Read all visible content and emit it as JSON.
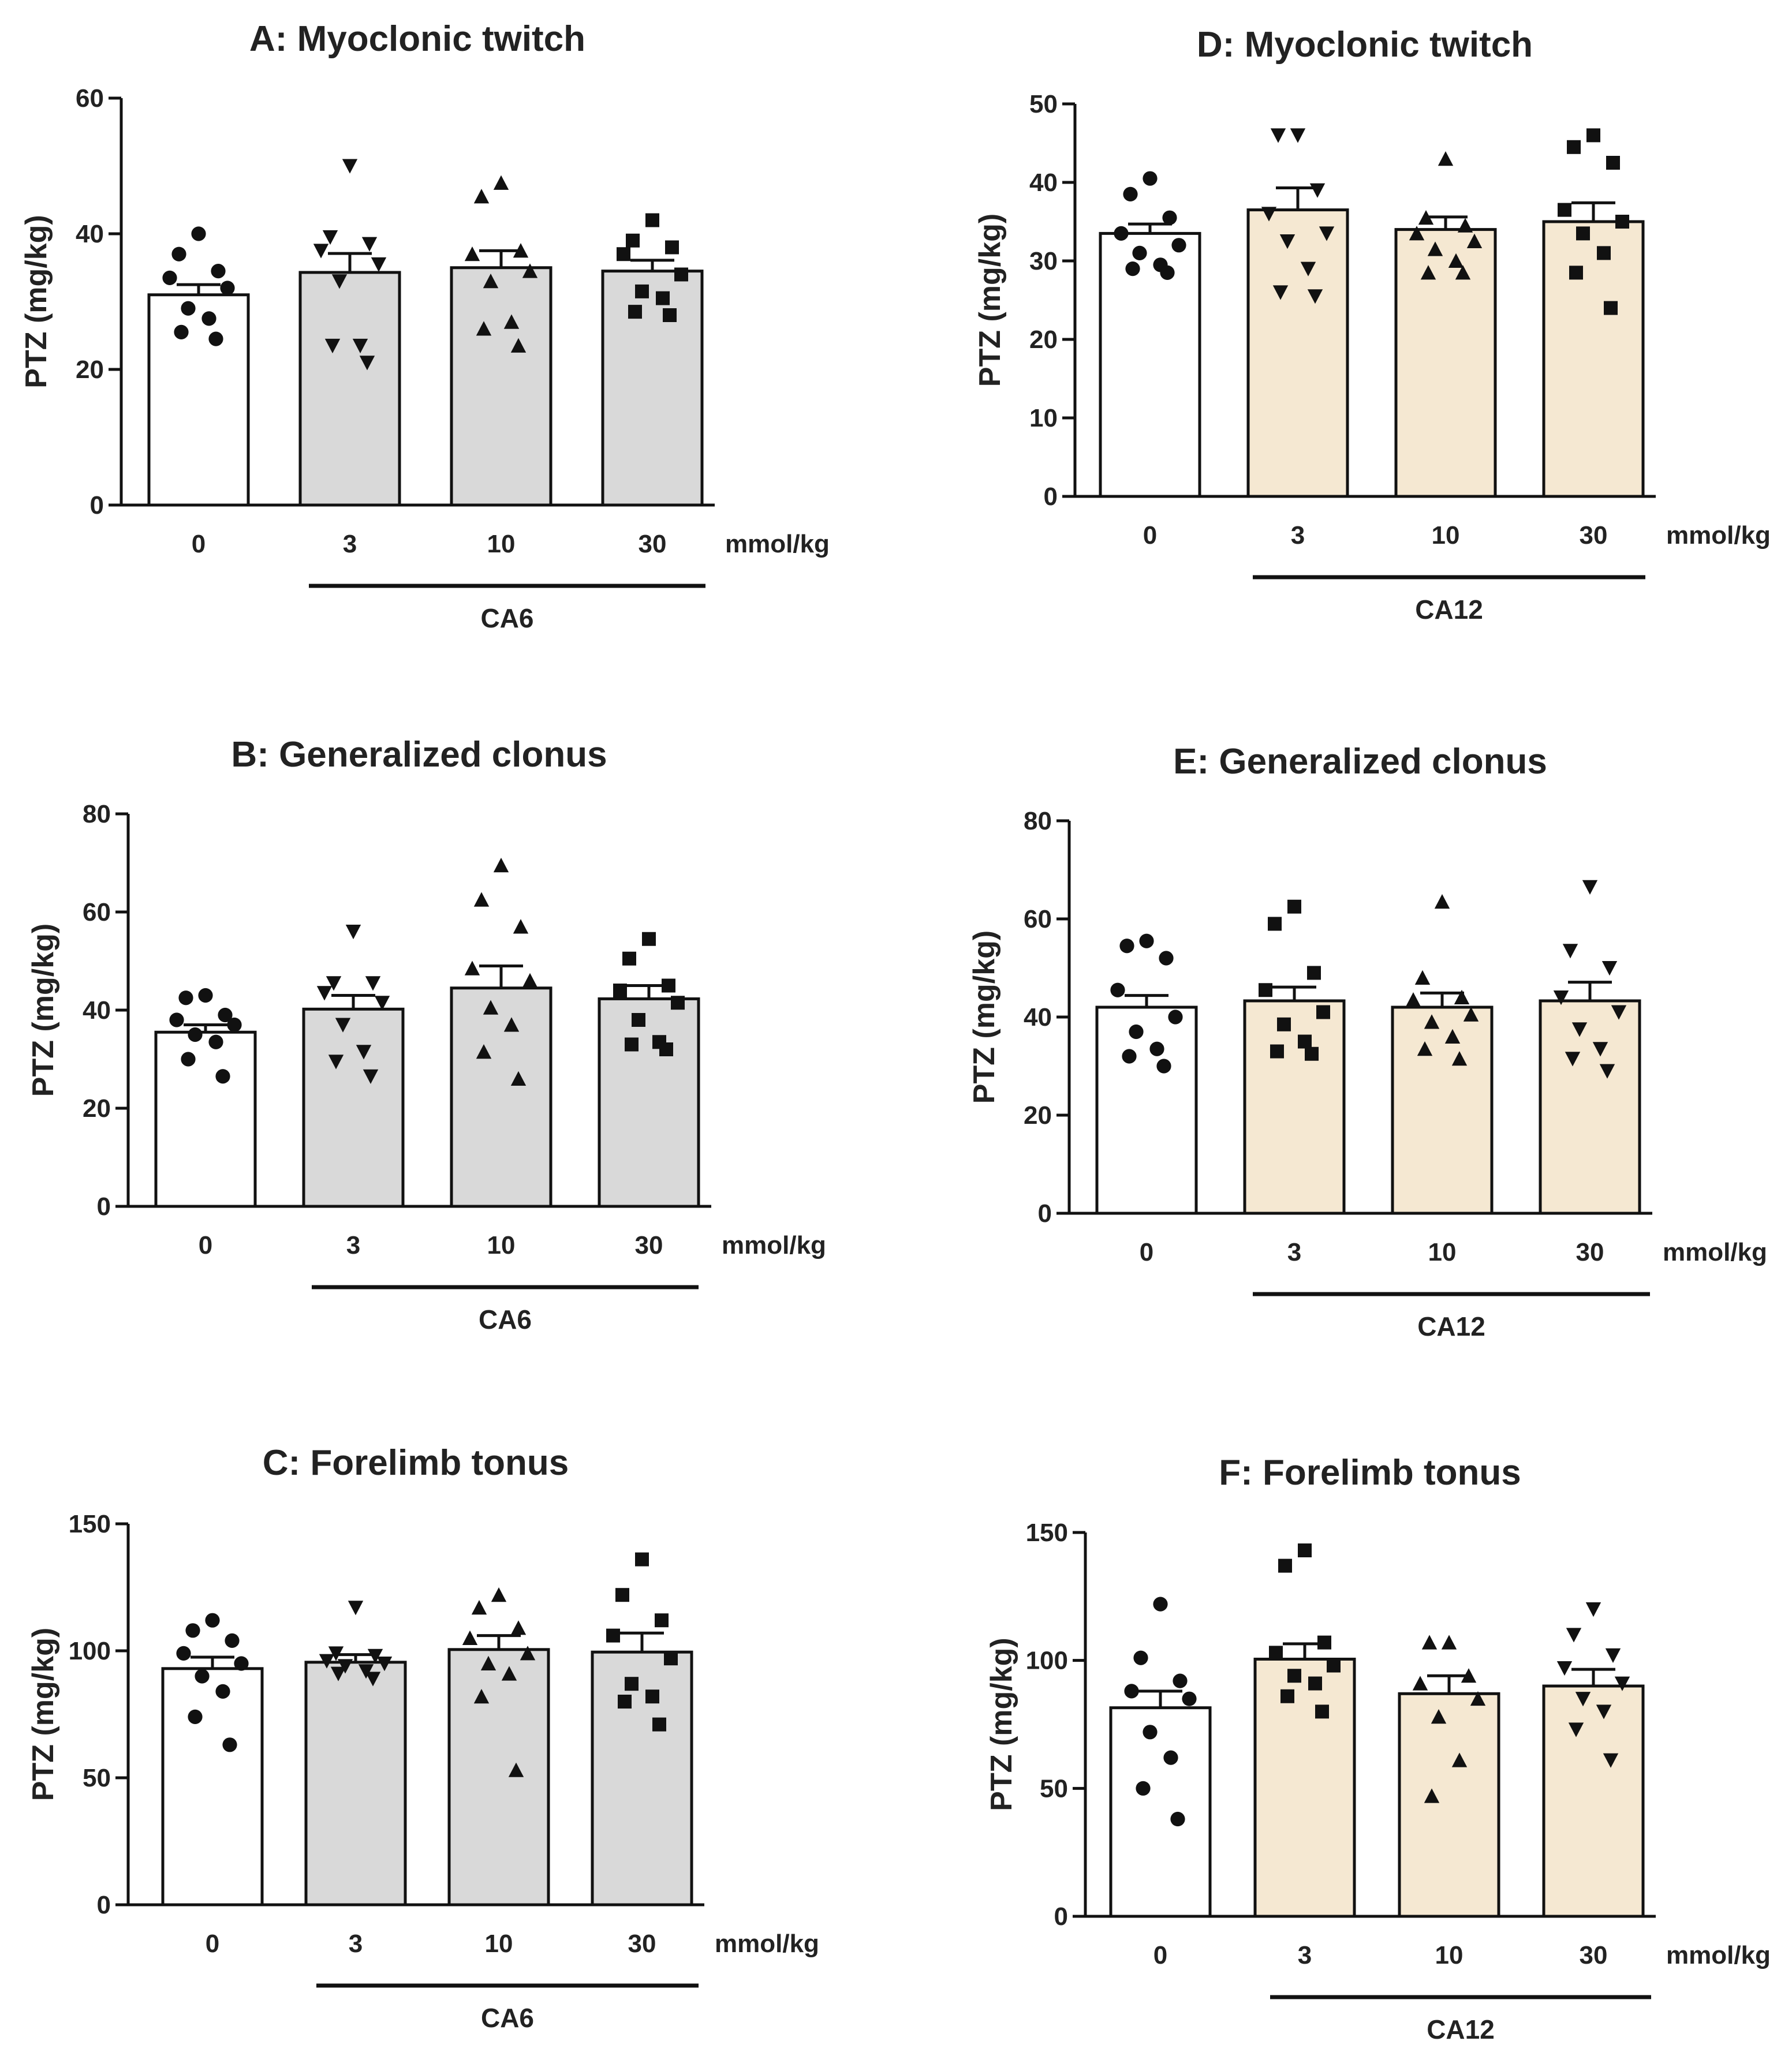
{
  "colors": {
    "control": "#ffffff",
    "CA6": "#d9d9d9",
    "CA12": "#f5e8d2",
    "ink": "#111111"
  },
  "chart_data": [
    {
      "id": "A",
      "type": "bar",
      "title": "A: Myoclonic twitch",
      "ylabel": "PTZ (mg/kg)",
      "categories": [
        "0",
        "3",
        "10",
        "30"
      ],
      "xunit": "mmol/kg",
      "group_label": "CA6",
      "group_color": "CA6",
      "ylim": [
        0,
        60
      ],
      "yticks": [
        "0",
        "20",
        "40",
        "60"
      ],
      "values": [
        31,
        34.3,
        35,
        34.5
      ],
      "sem": [
        1.5,
        2.8,
        2.5,
        1.6
      ],
      "markers": [
        "circle",
        "triangle-down",
        "triangle",
        "square"
      ],
      "points": [
        [
          40,
          37,
          34.5,
          33.5,
          32,
          29,
          27.5,
          25.5,
          24.5
        ],
        [
          50,
          39.5,
          38.5,
          37.5,
          35.5,
          33,
          23.5,
          23.5,
          21
        ],
        [
          47.5,
          45.5,
          37.5,
          37,
          34.5,
          33,
          27,
          26,
          23.5
        ],
        [
          42,
          39,
          38,
          37,
          34,
          31.5,
          30.5,
          28.5,
          28
        ]
      ]
    },
    {
      "id": "B",
      "type": "bar",
      "title": "B: Generalized clonus",
      "ylabel": "PTZ (mg/kg)",
      "categories": [
        "0",
        "3",
        "10",
        "30"
      ],
      "xunit": "mmol/kg",
      "group_label": "CA6",
      "group_color": "CA6",
      "ylim": [
        0,
        80
      ],
      "yticks": [
        "0",
        "20",
        "40",
        "60",
        "80"
      ],
      "values": [
        35.5,
        40.2,
        44.5,
        42.3
      ],
      "sem": [
        1.5,
        2.8,
        4.5,
        2.7
      ],
      "markers": [
        "circle",
        "triangle-down",
        "triangle",
        "square"
      ],
      "points": [
        [
          43,
          42.5,
          39,
          38,
          37,
          35,
          33.5,
          30,
          26.5
        ],
        [
          56,
          45.5,
          45.5,
          43.5,
          41.5,
          37,
          31.5,
          29.5,
          26.5
        ],
        [
          69.5,
          62.5,
          57,
          48.5,
          46,
          40.5,
          37,
          31.5,
          26
        ],
        [
          54.5,
          50.5,
          45,
          44,
          41.5,
          38,
          33.5,
          33,
          32
        ]
      ]
    },
    {
      "id": "C",
      "type": "bar",
      "title": "C: Forelimb tonus",
      "ylabel": "PTZ (mg/kg)",
      "categories": [
        "0",
        "3",
        "10",
        "30"
      ],
      "xunit": "mmol/kg",
      "group_label": "CA6",
      "group_color": "CA6",
      "ylim": [
        0,
        150
      ],
      "yticks": [
        "0",
        "50",
        "100",
        "150"
      ],
      "values": [
        93,
        95.5,
        100.5,
        99.5
      ],
      "sem": [
        4.5,
        3,
        5.5,
        7.5
      ],
      "markers": [
        "circle",
        "triangle-down",
        "triangle",
        "square"
      ],
      "points": [
        [
          112,
          108,
          104,
          99,
          95,
          90,
          84,
          74,
          63
        ],
        [
          117,
          99,
          98,
          96,
          95,
          94,
          92,
          91,
          89
        ],
        [
          122,
          117,
          109,
          105,
          99,
          95,
          91,
          82,
          53
        ],
        [
          136,
          122,
          112,
          106,
          97,
          87,
          82,
          80,
          71
        ]
      ]
    },
    {
      "id": "D",
      "type": "bar",
      "title": "D: Myoclonic twitch",
      "ylabel": "PTZ (mg/kg)",
      "categories": [
        "0",
        "3",
        "10",
        "30"
      ],
      "xunit": "mmol/kg",
      "group_label": "CA12",
      "group_color": "CA12",
      "ylim": [
        0,
        50
      ],
      "yticks": [
        "0",
        "10",
        "20",
        "30",
        "40",
        "50"
      ],
      "values": [
        33.5,
        36.5,
        34,
        35
      ],
      "sem": [
        1.2,
        2.8,
        1.6,
        2.4
      ],
      "markers": [
        "circle",
        "triangle-down",
        "triangle",
        "square"
      ],
      "points": [
        [
          40.5,
          38.5,
          35.5,
          33.5,
          32,
          31,
          29.5,
          29,
          28.5
        ],
        [
          46,
          46,
          39,
          36,
          33.5,
          32.5,
          29,
          26,
          25.5
        ],
        [
          43,
          35.5,
          34.5,
          33.5,
          32.5,
          31.5,
          30,
          28.5,
          28.5
        ],
        [
          46,
          44.5,
          42.5,
          36.5,
          35,
          33.5,
          31,
          28.5,
          24
        ]
      ]
    },
    {
      "id": "E",
      "type": "bar",
      "title": "E: Generalized clonus",
      "ylabel": "PTZ (mg/kg)",
      "categories": [
        "0",
        "3",
        "10",
        "30"
      ],
      "xunit": "mmol/kg",
      "group_label": "CA12",
      "group_color": "CA12",
      "ylim": [
        0,
        80
      ],
      "yticks": [
        "0",
        "20",
        "40",
        "60",
        "80"
      ],
      "values": [
        42,
        43.3,
        42,
        43.3
      ],
      "sem": [
        2.4,
        2.8,
        2.9,
        3.8
      ],
      "markers": [
        "circle",
        "square",
        "triangle",
        "triangle-down"
      ],
      "points": [
        [
          55.5,
          54.5,
          52,
          45.5,
          40,
          37,
          33.5,
          32,
          30
        ],
        [
          62.5,
          59,
          49,
          45.5,
          41,
          38.5,
          35,
          33,
          32.5
        ],
        [
          63.5,
          48,
          44,
          43.5,
          40.5,
          39,
          36,
          33.5,
          31.5
        ],
        [
          66.5,
          53.5,
          50,
          44,
          41,
          37.5,
          33.5,
          31.5,
          29
        ]
      ]
    },
    {
      "id": "F",
      "type": "bar",
      "title": "F: Forelimb tonus",
      "ylabel": "PTZ (mg/kg)",
      "categories": [
        "0",
        "3",
        "10",
        "30"
      ],
      "xunit": "mmol/kg",
      "group_label": "CA12",
      "group_color": "CA12",
      "ylim": [
        0,
        150
      ],
      "yticks": [
        "0",
        "50",
        "100",
        "150"
      ],
      "values": [
        81.5,
        100.5,
        87,
        90
      ],
      "sem": [
        6.5,
        6,
        7,
        6.5
      ],
      "markers": [
        "circle",
        "square",
        "triangle",
        "triangle-down"
      ],
      "points": [
        [
          122,
          101,
          92,
          88,
          85,
          72,
          62,
          50,
          38
        ],
        [
          143,
          137,
          107,
          103,
          98,
          94,
          91,
          86,
          80
        ],
        [
          107,
          107,
          94,
          91,
          85,
          78,
          61,
          47
        ],
        [
          120,
          110,
          102,
          97,
          91,
          85,
          80,
          73,
          61
        ]
      ]
    }
  ]
}
